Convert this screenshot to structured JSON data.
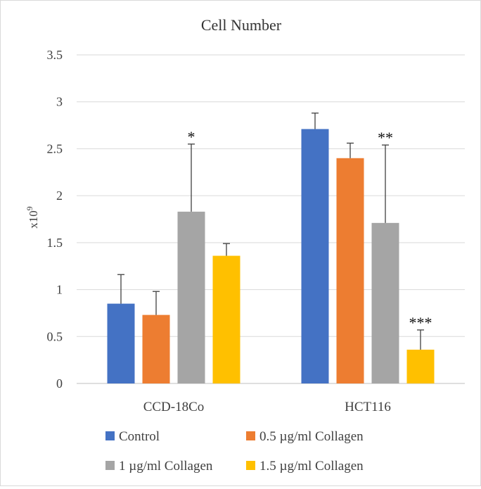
{
  "chart_data": {
    "type": "bar",
    "title": "Cell Number",
    "xlabel": "",
    "ylabel": "x10",
    "ylabel_superscript": "9",
    "ylim": [
      0,
      3.5
    ],
    "yticks": [
      0,
      0.5,
      1,
      1.5,
      2,
      2.5,
      3,
      3.5
    ],
    "ytick_labels": [
      "0",
      "0.5",
      "1",
      "1.5",
      "2",
      "2.5",
      "3",
      "3.5"
    ],
    "categories": [
      "CCD-18Co",
      "HCT116"
    ],
    "series": [
      {
        "name": "Control",
        "color": "#4472C4",
        "values": [
          0.85,
          2.71
        ],
        "errors": [
          0.31,
          0.17
        ],
        "annotations": [
          "",
          ""
        ]
      },
      {
        "name": "0.5 µg/ml Collagen",
        "color": "#ED7D31",
        "values": [
          0.73,
          2.4
        ],
        "errors": [
          0.25,
          0.16
        ],
        "annotations": [
          "",
          ""
        ]
      },
      {
        "name": "1 µg/ml Collagen",
        "color": "#A5A5A5",
        "values": [
          1.83,
          1.71
        ],
        "errors": [
          0.72,
          0.83
        ],
        "annotations": [
          "*",
          "**"
        ]
      },
      {
        "name": "1.5 µg/ml Collagen",
        "color": "#FFC000",
        "values": [
          1.36,
          0.36
        ],
        "errors": [
          0.13,
          0.21
        ],
        "annotations": [
          "",
          "***"
        ]
      }
    ],
    "grid": true,
    "legend_position": "bottom"
  }
}
